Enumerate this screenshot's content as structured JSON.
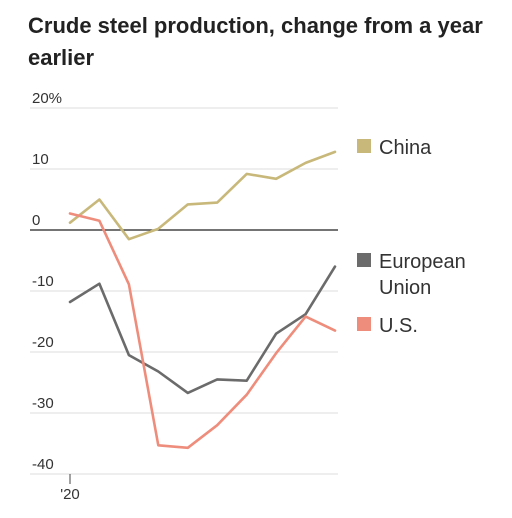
{
  "chart_data": {
    "type": "line",
    "title": "Crude steel production, change from a year earlier",
    "xlabel": "",
    "ylabel": "",
    "x_tick_labels": [
      "'20"
    ],
    "y_tick_labels": [
      "20%",
      "10",
      "0",
      "-10",
      "-20",
      "-30",
      "-40"
    ],
    "y_ticks": [
      20,
      10,
      0,
      -10,
      -20,
      -30,
      -40
    ],
    "ylim": [
      -41,
      21
    ],
    "grid": true,
    "legend_placement": "right",
    "x": [
      0,
      1,
      2,
      3,
      4,
      5,
      6,
      7,
      8,
      9
    ],
    "series": [
      {
        "name": "China",
        "color": "#c8b87a",
        "values": [
          1.2,
          5.0,
          -1.5,
          0.2,
          4.2,
          4.5,
          9.2,
          8.4,
          11.0,
          12.8
        ]
      },
      {
        "name": "European Union",
        "color": "#6b6b6b",
        "values": [
          -11.8,
          -8.8,
          -20.5,
          -23.2,
          -26.7,
          -24.5,
          -24.7,
          -17.0,
          -13.8,
          -6.0
        ]
      },
      {
        "name": "U.S.",
        "color": "#ee8d7c",
        "values": [
          2.7,
          1.5,
          -8.9,
          -35.3,
          -35.7,
          -32.0,
          -27.0,
          -20.2,
          -14.2,
          -16.5
        ]
      }
    ],
    "legend": [
      {
        "series": "China",
        "lines": [
          "China"
        ],
        "color": "#c8b87a"
      },
      {
        "series": "European Union",
        "lines": [
          "European",
          "Union"
        ],
        "color": "#6b6b6b"
      },
      {
        "series": "U.S.",
        "lines": [
          "U.S."
        ],
        "color": "#ee8d7c"
      }
    ]
  }
}
